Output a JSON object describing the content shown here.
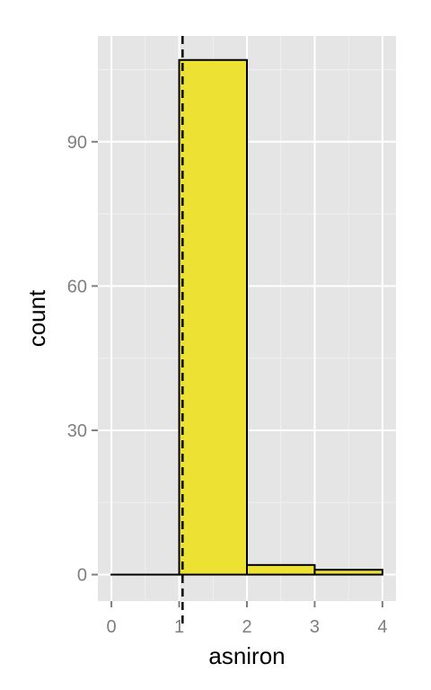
{
  "chart_data": {
    "type": "histogram",
    "title": "",
    "xlabel": "asniron",
    "ylabel": "count",
    "xlim": [
      -0.2,
      4.2
    ],
    "ylim": [
      -5.5,
      112
    ],
    "x_ticks": [
      0,
      1,
      2,
      3,
      4
    ],
    "x_tick_labels": [
      "0",
      "1",
      "2",
      "3",
      "4"
    ],
    "y_ticks": [
      0,
      30,
      60,
      90
    ],
    "y_tick_labels": [
      "0",
      "30",
      "60",
      "90"
    ],
    "grid": true,
    "legend": "none",
    "bins": [
      {
        "x0": 0,
        "x1": 1,
        "count": 0
      },
      {
        "x0": 1,
        "x1": 2,
        "count": 107
      },
      {
        "x0": 2,
        "x1": 3,
        "count": 2
      },
      {
        "x0": 3,
        "x1": 4,
        "count": 1
      }
    ],
    "reference_line": {
      "x": 1.05,
      "style": "dashed"
    },
    "colors": {
      "panel_background": "#e5e5e5",
      "grid_major": "#ffffff",
      "grid_minor": "#f0f0f0",
      "bar_fill": "#ede134",
      "bar_outline": "#000000",
      "reference_line": "#000000",
      "tick_label": "#7f7f7f",
      "axis_title": "#000000"
    }
  }
}
